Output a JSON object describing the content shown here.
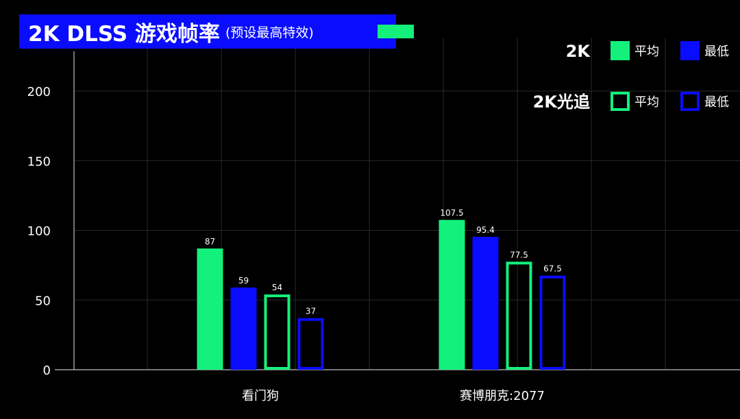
{
  "title": {
    "main": "2K DLSS 游戏帧率",
    "sub": "(预设最高特效)"
  },
  "colors": {
    "background": "#000000",
    "title_bg": "#0a0cff",
    "green": "#14f07c",
    "blue": "#0a0cff",
    "grid": "#2a2a2a",
    "axis": "#bfbfbf",
    "text": "#ffffff"
  },
  "legend": {
    "groups": [
      {
        "label": "2K",
        "items": [
          {
            "label": "平均",
            "style": "filled",
            "color": "green"
          },
          {
            "label": "最低",
            "style": "filled",
            "color": "blue"
          }
        ]
      },
      {
        "label": "2K光追",
        "items": [
          {
            "label": "平均",
            "style": "outline",
            "color": "green"
          },
          {
            "label": "最低",
            "style": "outline",
            "color": "blue"
          }
        ]
      }
    ]
  },
  "chart_data": {
    "type": "bar",
    "title": "2K DLSS 游戏帧率",
    "subtitle": "(预设最高特效)",
    "categories": [
      "看门狗",
      "赛博朋克:2077"
    ],
    "series": [
      {
        "name": "2K 平均",
        "values": [
          87,
          107.5
        ],
        "color": "green",
        "style": "filled"
      },
      {
        "name": "2K 最低",
        "values": [
          59,
          95.4
        ],
        "color": "blue",
        "style": "filled"
      },
      {
        "name": "2K光追 平均",
        "values": [
          54,
          77.5
        ],
        "color": "green",
        "style": "outline"
      },
      {
        "name": "2K光追 最低",
        "values": [
          37,
          67.5
        ],
        "color": "blue",
        "style": "outline"
      }
    ],
    "data_labels": [
      [
        "87",
        "107.5"
      ],
      [
        "59",
        "95.4"
      ],
      [
        "54",
        "77.5"
      ],
      [
        "37",
        "67.5"
      ]
    ],
    "yticks": [
      "0",
      "50",
      "100",
      "150",
      "200"
    ],
    "ylim": [
      0,
      200
    ],
    "xlabel": "",
    "ylabel": "",
    "grid": true,
    "legend_position": "top-right"
  }
}
